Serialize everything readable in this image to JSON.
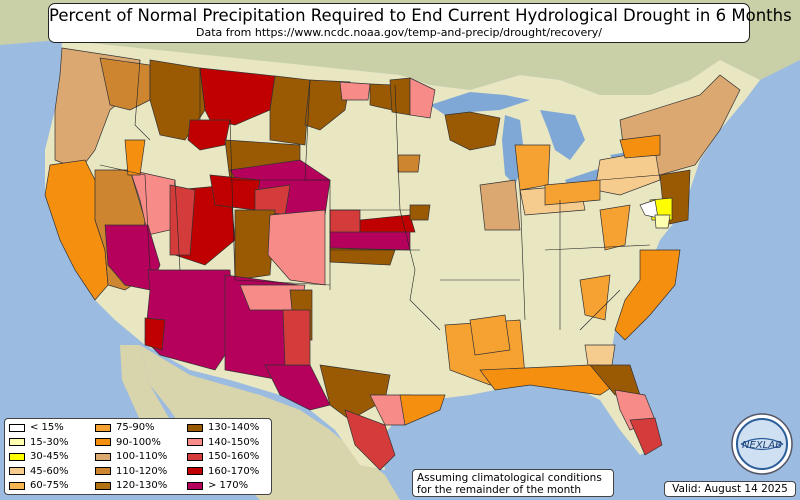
{
  "title": "Percent of Normal Precipitation Required to End Current Hydrological Drought in 6 Months",
  "subtitle": "Data from https://www.ncdc.noaa.gov/temp-and-precip/drought/recovery/",
  "note_line1": "Assuming climatological conditions",
  "note_line2": "for the remainder of the month",
  "valid": "Valid: August 14 2025",
  "logo_text": "NEXLAB",
  "colors": {
    "ocean": "#9bbbe0",
    "land": "#e9e6c2",
    "neighbor_land": "#c9d0a8",
    "lake": "#7fa8d6"
  },
  "legend": [
    {
      "label": "< 15%",
      "color": "#ffffff"
    },
    {
      "label": "15-30%",
      "color": "#ffffb0"
    },
    {
      "label": "30-45%",
      "color": "#ffff00"
    },
    {
      "label": "45-60%",
      "color": "#f6cc8e"
    },
    {
      "label": "60-75%",
      "color": "#f7b552"
    },
    {
      "label": "75-90%",
      "color": "#f6a232"
    },
    {
      "label": "90-100%",
      "color": "#f58f10"
    },
    {
      "label": "100-110%",
      "color": "#dca871"
    },
    {
      "label": "110-120%",
      "color": "#cd8530"
    },
    {
      "label": "120-130%",
      "color": "#b27212"
    },
    {
      "label": "130-140%",
      "color": "#9a5a04"
    },
    {
      "label": "140-150%",
      "color": "#f68b88"
    },
    {
      "label": "150-160%",
      "color": "#d43c3c"
    },
    {
      "label": "160-170%",
      "color": "#c00000"
    },
    {
      "label": "> 170%",
      "color": "#b5005c"
    }
  ],
  "regions": [
    {
      "name": "wa-or-west",
      "cls": "100-110%",
      "color": "#dca871"
    },
    {
      "name": "wa-east",
      "cls": "110-120%",
      "color": "#cd8530"
    },
    {
      "name": "id-mt-west",
      "cls": "130-140%",
      "color": "#9a5a04"
    },
    {
      "name": "mt-central",
      "cls": "160-170%",
      "color": "#c00000"
    },
    {
      "name": "mt-east",
      "cls": "130-140%",
      "color": "#9a5a04"
    },
    {
      "name": "nd-sd",
      "cls": "130-140%",
      "color": "#9a5a04"
    },
    {
      "name": "ca-coast",
      "cls": "90-100%",
      "color": "#f58f10"
    },
    {
      "name": "nv-west",
      "cls": "110-120%",
      "color": "#cd8530"
    },
    {
      "name": "nv-east",
      "cls": "140-150%",
      "color": "#f68b88"
    },
    {
      "name": "ca-south",
      "cls": "> 170%",
      "color": "#b5005c"
    },
    {
      "name": "az",
      "cls": "> 170%",
      "color": "#b5005c"
    },
    {
      "name": "nm",
      "cls": "> 170%",
      "color": "#b5005c"
    },
    {
      "name": "ut",
      "cls": "160-170%",
      "color": "#c00000"
    },
    {
      "name": "wy-co",
      "cls": "> 170%",
      "color": "#b5005c"
    },
    {
      "name": "co-south",
      "cls": "140-150%",
      "color": "#f68b88"
    },
    {
      "name": "nm-east",
      "cls": "140-150%",
      "color": "#f68b88"
    },
    {
      "name": "tx-west",
      "cls": "> 170%",
      "color": "#b5005c"
    },
    {
      "name": "tx-central",
      "cls": "130-140%",
      "color": "#9a5a04"
    },
    {
      "name": "tx-south",
      "cls": "150-160%",
      "color": "#d43c3c"
    },
    {
      "name": "tx-coast",
      "cls": "140-150%",
      "color": "#f68b88"
    },
    {
      "name": "ks",
      "cls": "> 170%",
      "color": "#b5005c"
    },
    {
      "name": "southeast-coast",
      "cls": "90-100%",
      "color": "#f58f10"
    },
    {
      "name": "fl-central",
      "cls": "140-150%",
      "color": "#f68b88"
    },
    {
      "name": "fl-south",
      "cls": "150-160%",
      "color": "#d43c3c"
    },
    {
      "name": "gulf-coast",
      "cls": "90-100%",
      "color": "#f58f10"
    },
    {
      "name": "northeast",
      "cls": "100-110%",
      "color": "#dca871"
    },
    {
      "name": "md-de",
      "cls": "30-45%",
      "color": "#ffff00"
    }
  ]
}
